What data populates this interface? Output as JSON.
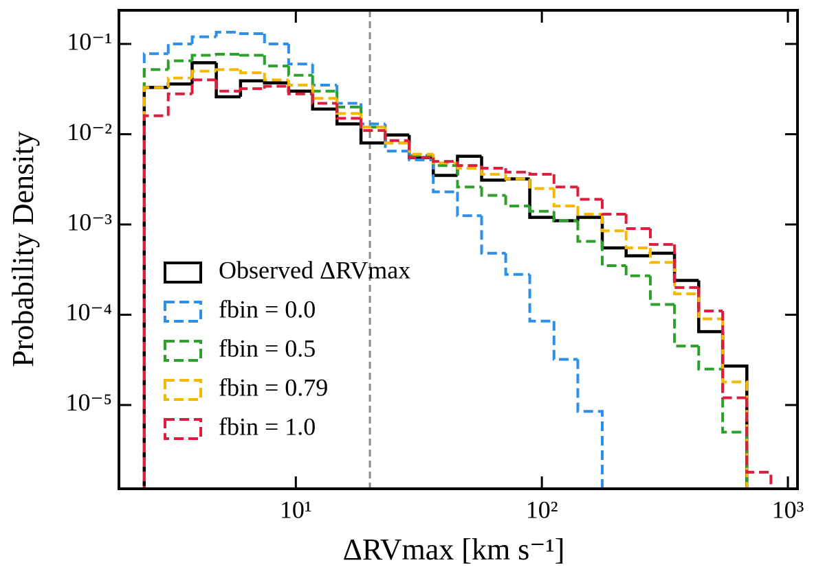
{
  "chart_data": {
    "type": "histogram",
    "xlabel": "ΔRVmax [km s⁻¹]",
    "ylabel": "Probability Density",
    "log_x": true,
    "log_y": true,
    "xlim": [
      1.91,
      1094
    ],
    "ylim": [
      1.18e-06,
      0.236
    ],
    "xticks": [
      {
        "value": 10,
        "label": "10¹"
      },
      {
        "value": 100,
        "label": "10²"
      },
      {
        "value": 1000,
        "label": "10³"
      }
    ],
    "yticks": [
      {
        "value": 1e-05,
        "label": "10⁻⁵"
      },
      {
        "value": 0.0001,
        "label": "10⁻⁴"
      },
      {
        "value": 0.001,
        "label": "10⁻³"
      },
      {
        "value": 0.01,
        "label": "10⁻²"
      },
      {
        "value": 0.1,
        "label": "10⁻¹"
      }
    ],
    "vline": {
      "x": 20,
      "color": "#888888"
    },
    "legend": "lower left",
    "bins": [
      2.42,
      3.03,
      3.79,
      4.75,
      5.96,
      7.46,
      9.35,
      11.7,
      14.7,
      18.4,
      23.1,
      28.9,
      36.2,
      45.4,
      56.9,
      71.3,
      89.3,
      112,
      140,
      176,
      220,
      276,
      346,
      434,
      543,
      681,
      853
    ],
    "series": [
      {
        "name": "Observed ΔRVmax",
        "color": "#000000",
        "dashed": false,
        "values": [
          0.033,
          0.036,
          0.062,
          0.026,
          0.039,
          0.037,
          0.03,
          0.019,
          0.013,
          0.008,
          0.0098,
          0.0055,
          0.0035,
          0.0057,
          0.0031,
          0.0032,
          0.0012,
          0.0011,
          0.0012,
          0.00055,
          0.00045,
          0.00048,
          0.00024,
          6.5e-05,
          2.7e-05,
          null
        ]
      },
      {
        "name": "fbin = 0.0",
        "color": "#2e8fe8",
        "dashed": true,
        "values": [
          0.078,
          0.1,
          0.12,
          0.135,
          0.13,
          0.1,
          0.06,
          0.035,
          0.022,
          0.013,
          0.0065,
          0.0052,
          0.0023,
          0.00125,
          0.00048,
          0.00028,
          8.5e-05,
          3.2e-05,
          8.5e-06,
          null,
          null,
          null,
          null,
          null,
          null,
          null
        ]
      },
      {
        "name": "fbin = 0.5",
        "color": "#2ca02c",
        "dashed": true,
        "values": [
          0.052,
          0.065,
          0.075,
          0.077,
          0.075,
          0.057,
          0.045,
          0.03,
          0.02,
          0.012,
          0.008,
          0.0058,
          0.0045,
          0.0026,
          0.0021,
          0.0016,
          0.0014,
          0.0011,
          0.00065,
          0.00035,
          0.00027,
          0.00013,
          4.5e-05,
          2.5e-05,
          5e-06,
          null
        ]
      },
      {
        "name": "fbin = 0.79",
        "color": "#f5b800",
        "dashed": true,
        "values": [
          0.033,
          0.042,
          0.05,
          0.052,
          0.048,
          0.04,
          0.035,
          0.025,
          0.017,
          0.012,
          0.008,
          0.006,
          0.0048,
          0.0042,
          0.0036,
          0.0032,
          0.0025,
          0.0016,
          0.0013,
          0.00085,
          0.00055,
          0.00038,
          0.00017,
          9e-05,
          1.8e-05,
          null
        ]
      },
      {
        "name": "fbin = 1.0",
        "color": "#dc1e3c",
        "dashed": true,
        "values": [
          0.016,
          0.028,
          0.04,
          0.03,
          0.032,
          0.034,
          0.028,
          0.022,
          0.015,
          0.011,
          0.0085,
          0.0055,
          0.005,
          0.0045,
          0.0042,
          0.0038,
          0.0036,
          0.0026,
          0.0019,
          0.0013,
          0.0009,
          0.0006,
          0.0002,
          0.00011,
          1.2e-05,
          1.8e-06
        ]
      }
    ]
  }
}
